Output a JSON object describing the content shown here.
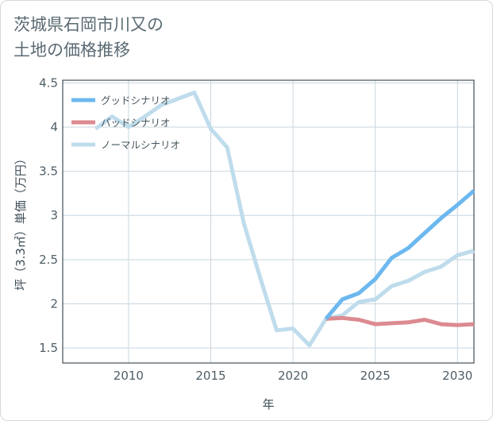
{
  "title_lines": [
    "茨城県石岡市川又の",
    "土地の価格推移"
  ],
  "chart_data": {
    "type": "line",
    "title": "茨城県石岡市川又の土地の価格推移",
    "xlabel": "年",
    "ylabel": "坪（3.3㎡）単価（万円）",
    "xlim": [
      2006,
      2031
    ],
    "ylim": [
      1.33,
      4.53
    ],
    "x_ticks": [
      2010,
      2015,
      2020,
      2025,
      2030
    ],
    "y_ticks": [
      1.5,
      2,
      2.5,
      3,
      3.5,
      4,
      4.5
    ],
    "grid": true,
    "legend_position": "top-left",
    "series": [
      {
        "name": "グッドシナリオ",
        "color": "#6cb8ef",
        "width": 5,
        "x": [
          2022,
          2023,
          2024,
          2025,
          2026,
          2027,
          2028,
          2029,
          2030,
          2031
        ],
        "values": [
          1.83,
          2.05,
          2.12,
          2.28,
          2.52,
          2.63,
          2.8,
          2.97,
          3.12,
          3.28
        ]
      },
      {
        "name": "バッドシナリオ",
        "color": "#dc8a90",
        "width": 5,
        "x": [
          2022,
          2023,
          2024,
          2025,
          2026,
          2027,
          2028,
          2029,
          2030,
          2031
        ],
        "values": [
          1.83,
          1.84,
          1.82,
          1.77,
          1.78,
          1.79,
          1.82,
          1.77,
          1.76,
          1.77
        ]
      },
      {
        "name": "ノーマルシナリオ",
        "color": "#bfdcec",
        "width": 5,
        "x": [
          2008,
          2009,
          2010,
          2011,
          2012,
          2013,
          2014,
          2015,
          2016,
          2017,
          2018,
          2019,
          2020,
          2021,
          2022,
          2023,
          2024,
          2025,
          2026,
          2027,
          2028,
          2029,
          2030,
          2031
        ],
        "values": [
          3.98,
          4.12,
          4.0,
          4.12,
          4.25,
          4.32,
          4.39,
          3.98,
          3.77,
          2.92,
          2.3,
          1.7,
          1.72,
          1.53,
          1.83,
          1.87,
          2.02,
          2.05,
          2.2,
          2.26,
          2.36,
          2.42,
          2.55,
          2.6
        ]
      }
    ]
  }
}
